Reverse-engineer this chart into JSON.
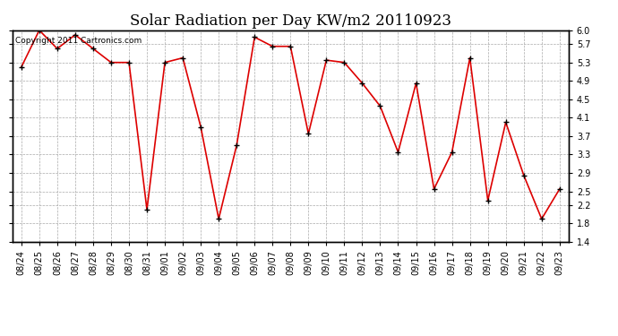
{
  "title": "Solar Radiation per Day KW/m2 20110923",
  "copyright_text": "Copyright 2011 Cartronics.com",
  "dates": [
    "08/24",
    "08/25",
    "08/26",
    "08/27",
    "08/28",
    "08/29",
    "08/30",
    "08/31",
    "09/01",
    "09/02",
    "09/03",
    "09/04",
    "09/05",
    "09/06",
    "09/07",
    "09/08",
    "09/09",
    "09/10",
    "09/11",
    "09/12",
    "09/13",
    "09/14",
    "09/15",
    "09/16",
    "09/17",
    "09/18",
    "09/19",
    "09/20",
    "09/21",
    "09/22",
    "09/23"
  ],
  "values": [
    5.2,
    6.0,
    5.6,
    5.9,
    5.6,
    5.3,
    5.3,
    2.1,
    5.3,
    5.4,
    3.9,
    1.9,
    3.5,
    5.85,
    5.65,
    5.65,
    3.75,
    5.35,
    5.3,
    4.85,
    4.35,
    3.35,
    4.85,
    2.55,
    3.35,
    5.4,
    2.3,
    4.0,
    2.85,
    1.9,
    2.55
  ],
  "ylim": [
    1.4,
    6.0
  ],
  "yticks": [
    1.4,
    1.8,
    2.2,
    2.5,
    2.9,
    3.3,
    3.7,
    4.1,
    4.5,
    4.9,
    5.3,
    5.7,
    6.0
  ],
  "line_color": "#dd0000",
  "marker_color": "#000000",
  "bg_color": "#ffffff",
  "grid_color": "#aaaaaa",
  "title_fontsize": 12,
  "tick_fontsize": 7,
  "copyright_fontsize": 6.5
}
